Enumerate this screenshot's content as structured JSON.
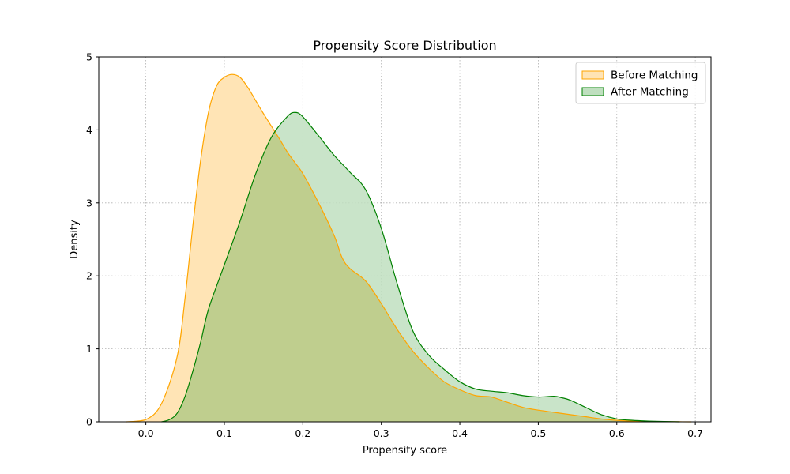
{
  "chart_data": {
    "type": "area",
    "title": "Propensity Score Distribution",
    "xlabel": "Propensity score",
    "ylabel": "Density",
    "xlim": [
      -0.06,
      0.72
    ],
    "ylim": [
      0,
      5
    ],
    "xticks": [
      0.0,
      0.1,
      0.2,
      0.3,
      0.4,
      0.5,
      0.6,
      0.7
    ],
    "xtick_labels": [
      "0.0",
      "0.1",
      "0.2",
      "0.3",
      "0.4",
      "0.5",
      "0.6",
      "0.7"
    ],
    "yticks": [
      0,
      1,
      2,
      3,
      4,
      5
    ],
    "ytick_labels": [
      "0",
      "1",
      "2",
      "3",
      "4",
      "5"
    ],
    "grid": true,
    "legend_position": "top-right",
    "series": [
      {
        "name": "Before Matching",
        "line_color": "#FFA500",
        "fill_color": "#FFE4B5",
        "x": [
          -0.025,
          0.0,
          0.02,
          0.04,
          0.05,
          0.06,
          0.07,
          0.08,
          0.09,
          0.1,
          0.11,
          0.12,
          0.13,
          0.14,
          0.15,
          0.16,
          0.17,
          0.18,
          0.19,
          0.2,
          0.22,
          0.24,
          0.25,
          0.26,
          0.28,
          0.3,
          0.32,
          0.34,
          0.36,
          0.38,
          0.4,
          0.42,
          0.44,
          0.46,
          0.48,
          0.5,
          0.52,
          0.54,
          0.56,
          0.58,
          0.6,
          0.62,
          0.64,
          0.66,
          0.68,
          0.695
        ],
        "y": [
          0.0,
          0.03,
          0.25,
          0.9,
          1.7,
          2.7,
          3.6,
          4.25,
          4.6,
          4.72,
          4.76,
          4.72,
          4.58,
          4.4,
          4.22,
          4.05,
          3.88,
          3.7,
          3.55,
          3.4,
          3.0,
          2.55,
          2.25,
          2.1,
          1.93,
          1.62,
          1.27,
          0.97,
          0.74,
          0.55,
          0.44,
          0.36,
          0.34,
          0.27,
          0.2,
          0.16,
          0.13,
          0.1,
          0.07,
          0.04,
          0.02,
          0.01,
          0.005,
          0.002,
          0.001,
          0.0
        ]
      },
      {
        "name": "After Matching",
        "line_color": "#008000",
        "fill_color": "#BFDFBF",
        "x": [
          0.02,
          0.03,
          0.04,
          0.05,
          0.06,
          0.07,
          0.08,
          0.1,
          0.12,
          0.14,
          0.16,
          0.18,
          0.19,
          0.2,
          0.22,
          0.24,
          0.26,
          0.28,
          0.3,
          0.32,
          0.34,
          0.36,
          0.38,
          0.4,
          0.42,
          0.44,
          0.46,
          0.48,
          0.5,
          0.52,
          0.53,
          0.54,
          0.56,
          0.58,
          0.6,
          0.62,
          0.64,
          0.66,
          0.68
        ],
        "y": [
          0.0,
          0.03,
          0.12,
          0.35,
          0.7,
          1.1,
          1.55,
          2.15,
          2.75,
          3.4,
          3.9,
          4.18,
          4.24,
          4.18,
          3.92,
          3.65,
          3.42,
          3.18,
          2.65,
          1.9,
          1.25,
          0.92,
          0.72,
          0.55,
          0.45,
          0.42,
          0.4,
          0.36,
          0.34,
          0.35,
          0.33,
          0.3,
          0.2,
          0.1,
          0.04,
          0.02,
          0.01,
          0.004,
          0.0
        ]
      }
    ]
  }
}
